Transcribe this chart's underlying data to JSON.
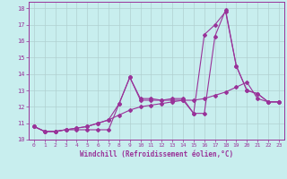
{
  "xlabel": "Windchill (Refroidissement éolien,°C)",
  "bg_color": "#c8eeee",
  "grid_color": "#b0d0d0",
  "line_color": "#993399",
  "xlim": [
    -0.5,
    23.5
  ],
  "ylim": [
    10.0,
    18.4
  ],
  "xticks": [
    0,
    1,
    2,
    3,
    4,
    5,
    6,
    7,
    8,
    9,
    10,
    11,
    12,
    13,
    14,
    15,
    16,
    17,
    18,
    19,
    20,
    21,
    22,
    23
  ],
  "yticks": [
    10,
    11,
    12,
    13,
    14,
    15,
    16,
    17,
    18
  ],
  "line1_x": [
    0,
    1,
    2,
    3,
    4,
    5,
    6,
    7,
    8,
    9,
    10,
    11,
    12,
    13,
    14,
    15,
    16,
    17,
    18,
    19,
    20,
    21,
    22,
    23
  ],
  "line1_y": [
    10.8,
    10.5,
    10.5,
    10.6,
    10.6,
    10.6,
    10.6,
    10.6,
    12.2,
    13.8,
    12.5,
    12.5,
    12.4,
    12.5,
    12.5,
    11.6,
    11.6,
    16.3,
    17.9,
    14.5,
    13.0,
    12.8,
    12.3,
    12.3
  ],
  "line2_x": [
    0,
    1,
    2,
    3,
    4,
    5,
    6,
    7,
    8,
    9,
    10,
    11,
    12,
    13,
    14,
    15,
    16,
    17,
    18,
    19,
    20,
    21,
    22,
    23
  ],
  "line2_y": [
    10.8,
    10.5,
    10.5,
    10.6,
    10.7,
    10.8,
    11.0,
    11.2,
    12.2,
    13.8,
    12.4,
    12.4,
    12.4,
    12.4,
    12.4,
    11.6,
    16.4,
    17.0,
    17.8,
    14.5,
    13.0,
    12.8,
    12.3,
    12.3
  ],
  "line3_x": [
    0,
    1,
    2,
    3,
    4,
    5,
    6,
    7,
    8,
    9,
    10,
    11,
    12,
    13,
    14,
    15,
    16,
    17,
    18,
    19,
    20,
    21,
    22,
    23
  ],
  "line3_y": [
    10.8,
    10.5,
    10.5,
    10.6,
    10.7,
    10.8,
    11.0,
    11.2,
    11.5,
    11.8,
    12.0,
    12.1,
    12.2,
    12.3,
    12.4,
    12.4,
    12.5,
    12.7,
    12.9,
    13.2,
    13.5,
    12.5,
    12.3,
    12.3
  ]
}
